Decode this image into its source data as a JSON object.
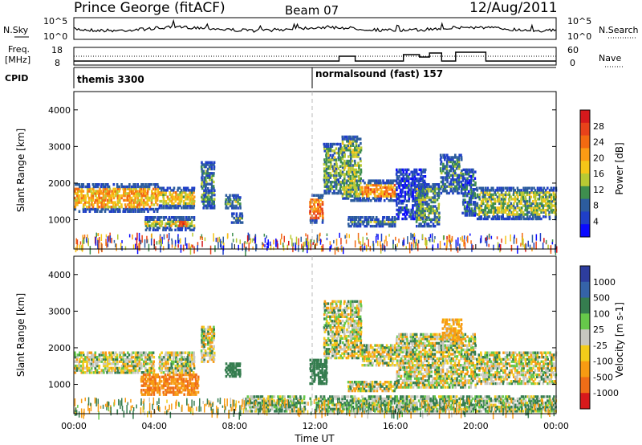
{
  "header": {
    "station": "Prince George (fitACF)",
    "beam": "Beam 07",
    "date": "12/Aug/2011"
  },
  "noise_panel": {
    "left_label": "N.Sky",
    "right_label": "N.Search",
    "left_ticks": [
      "10^5",
      "10^0"
    ],
    "right_ticks": [
      "10^5",
      "10^0"
    ]
  },
  "freq_panel": {
    "left_label_1": "Freq.",
    "left_label_2": "[MHz]",
    "right_label": "Nave",
    "left_ticks": [
      "18",
      "8"
    ],
    "right_ticks": [
      "60",
      "0"
    ],
    "cpid_label": "CPID"
  },
  "cpid_segments": [
    {
      "label": "themis 3300",
      "start_hour": 0
    },
    {
      "label": "normalsound (fast) 157",
      "start_hour": 12
    }
  ],
  "time_axis": {
    "tick_labels": [
      "00:00",
      "04:00",
      "08:00",
      "12:00",
      "16:00",
      "20:00",
      "00:00"
    ],
    "xlabel": "Time UT"
  },
  "power_colorbar": {
    "title": "Power [dB]",
    "labels": [
      "28",
      "24",
      "20",
      "16",
      "12",
      "8",
      "4"
    ],
    "colors": [
      "#d7191c",
      "#e8421a",
      "#f36a11",
      "#fb9b14",
      "#f5c518",
      "#b8c933",
      "#3e8e4e",
      "#2c5c9e",
      "#1f3fc7",
      "#0a0aff"
    ]
  },
  "velocity_colorbar": {
    "title": "Velocity [m s-1]",
    "labels": [
      "1000",
      "500",
      "100",
      "25",
      "-25",
      "-100",
      "-500",
      "-1000"
    ],
    "colors": [
      "#2d3d9e",
      "#3563a8",
      "#357d4f",
      "#66c84a",
      "#c7c7bf",
      "#f2cc1a",
      "#f79b12",
      "#ef6d17",
      "#d7191c"
    ]
  },
  "chart_data": [
    {
      "type": "heatmap",
      "name": "power",
      "xlabel": "",
      "ylabel": "Slant Range [km]",
      "ylim": [
        200,
        4500
      ],
      "xlim_hours": [
        0,
        24
      ],
      "y_tick_labels": [
        "1000",
        "2000",
        "3000",
        "4000"
      ],
      "y_ticks": [
        1000,
        2000,
        3000,
        4000
      ],
      "echo_regions": [
        {
          "t0": 0.0,
          "t1": 4.2,
          "r0": 1200,
          "r1": 2000,
          "v": 20
        },
        {
          "t0": 4.2,
          "t1": 6.0,
          "r0": 1300,
          "r1": 1900,
          "v": 18
        },
        {
          "t0": 3.5,
          "t1": 6.0,
          "r0": 700,
          "r1": 1100,
          "v": 16
        },
        {
          "t0": 5.2,
          "t1": 5.6,
          "r0": 700,
          "r1": 1100,
          "v": 28
        },
        {
          "t0": 6.3,
          "t1": 7.0,
          "r0": 1300,
          "r1": 2600,
          "v": 10
        },
        {
          "t0": 7.5,
          "t1": 8.3,
          "r0": 1300,
          "r1": 1700,
          "v": 14
        },
        {
          "t0": 7.8,
          "t1": 8.4,
          "r0": 900,
          "r1": 1200,
          "v": 12
        },
        {
          "t0": 11.7,
          "t1": 12.4,
          "r0": 900,
          "r1": 1700,
          "v": 24
        },
        {
          "t0": 12.4,
          "t1": 13.3,
          "r0": 1700,
          "r1": 3100,
          "v": 12
        },
        {
          "t0": 13.3,
          "t1": 14.3,
          "r0": 1500,
          "r1": 3300,
          "v": 14
        },
        {
          "t0": 14.3,
          "t1": 16.0,
          "r0": 1500,
          "r1": 2100,
          "v": 22
        },
        {
          "t0": 13.6,
          "t1": 16.0,
          "r0": 800,
          "r1": 1100,
          "v": 12
        },
        {
          "t0": 16.0,
          "t1": 17.5,
          "r0": 1000,
          "r1": 2400,
          "v": 6
        },
        {
          "t0": 17.0,
          "t1": 18.2,
          "r0": 800,
          "r1": 2000,
          "v": 12
        },
        {
          "t0": 18.2,
          "t1": 19.3,
          "r0": 1700,
          "r1": 2800,
          "v": 10
        },
        {
          "t0": 19.3,
          "t1": 20.0,
          "r0": 1100,
          "r1": 2400,
          "v": 8
        },
        {
          "t0": 20.0,
          "t1": 24.0,
          "r0": 1000,
          "r1": 1900,
          "v": 14
        }
      ]
    },
    {
      "type": "heatmap",
      "name": "velocity",
      "xlabel": "Time UT",
      "ylabel": "Slant Range [km]",
      "ylim": [
        200,
        4500
      ],
      "xlim_hours": [
        0,
        24
      ],
      "y_tick_labels": [
        "1000",
        "2000",
        "3000",
        "4000"
      ],
      "y_ticks": [
        1000,
        2000,
        3000,
        4000
      ],
      "echo_regions": [
        {
          "t0": 0.0,
          "t1": 4.0,
          "r0": 1300,
          "r1": 1900,
          "v": 0
        },
        {
          "t0": 3.3,
          "t1": 6.2,
          "r0": 700,
          "r1": 1300,
          "v": -300
        },
        {
          "t0": 4.2,
          "t1": 6.0,
          "r0": 1300,
          "r1": 1900,
          "v": 0
        },
        {
          "t0": 6.3,
          "t1": 7.0,
          "r0": 1600,
          "r1": 2600,
          "v": 0
        },
        {
          "t0": 7.5,
          "t1": 8.3,
          "r0": 1200,
          "r1": 1600,
          "v": 200
        },
        {
          "t0": 8.5,
          "t1": 11.5,
          "r0": 250,
          "r1": 700,
          "v": 50
        },
        {
          "t0": 11.7,
          "t1": 12.6,
          "r0": 1000,
          "r1": 1700,
          "v": 200
        },
        {
          "t0": 12.4,
          "t1": 14.3,
          "r0": 1700,
          "r1": 3300,
          "v": 0
        },
        {
          "t0": 14.3,
          "t1": 16.0,
          "r0": 1500,
          "r1": 2100,
          "v": 0
        },
        {
          "t0": 13.6,
          "t1": 16.0,
          "r0": 800,
          "r1": 1100,
          "v": 0
        },
        {
          "t0": 16.0,
          "t1": 20.0,
          "r0": 900,
          "r1": 2400,
          "v": 0
        },
        {
          "t0": 18.3,
          "t1": 19.3,
          "r0": 2200,
          "r1": 2800,
          "v": -100
        },
        {
          "t0": 20.0,
          "t1": 24.0,
          "r0": 1000,
          "r1": 1900,
          "v": 0
        },
        {
          "t0": 12.0,
          "t1": 24.0,
          "r0": 250,
          "r1": 700,
          "v": 50
        }
      ]
    }
  ]
}
